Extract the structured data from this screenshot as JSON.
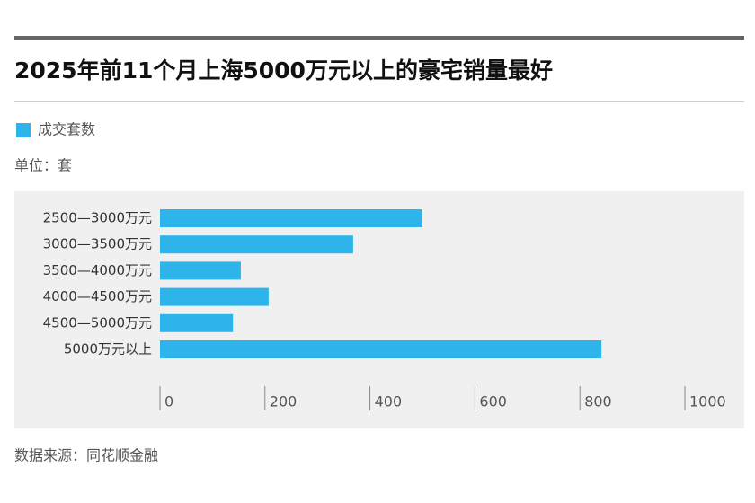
{
  "chart_data": {
    "type": "bar",
    "orientation": "horizontal",
    "title": "2025年前11个月上海5000万元以上的豪宅销量最好",
    "unit": "单位：套",
    "source": "数据来源：同花顺金融",
    "categories": [
      "2500—3000万元",
      "3000—3500万元",
      "3500—4000万元",
      "4000—4500万元",
      "4500—5000万元",
      "5000万元以上"
    ],
    "series": [
      {
        "name": "成交套数",
        "color": "#2db4ea",
        "values": [
          500,
          368,
          154,
          207,
          139,
          841
        ]
      }
    ],
    "xlim": [
      0,
      1000
    ],
    "xticks": [
      0,
      200,
      400,
      600,
      800,
      1000
    ],
    "grid": false
  }
}
